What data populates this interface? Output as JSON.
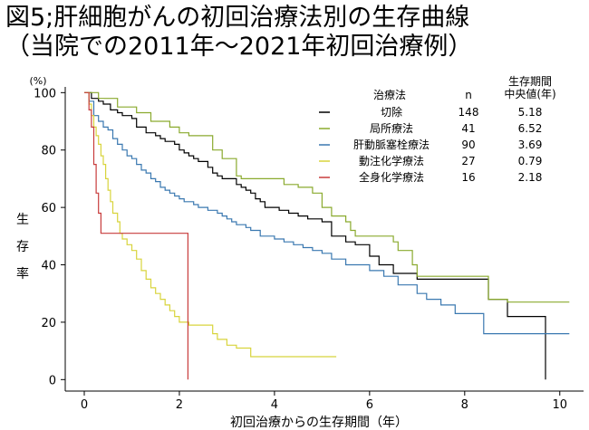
{
  "title_line1": "図5;肝細胞がんの初回治療法別の生存曲線",
  "title_line2": "（当院での2011年～2021年初回治療例）",
  "chart_data": {
    "type": "line",
    "subtype": "kaplan-meier step",
    "xlabel": "初回治療からの生存期間（年）",
    "ylabel": "生存率",
    "y_unit": "(%)",
    "xlim": [
      -0.4,
      10.5
    ],
    "ylim": [
      -4,
      102
    ],
    "xticks": [
      0,
      2,
      4,
      6,
      8,
      10
    ],
    "yticks": [
      0,
      20,
      40,
      60,
      80,
      100
    ],
    "grid": false,
    "legend": {
      "placement": "top-right",
      "header_method": "治療法",
      "header_n": "n",
      "header_median": "生存期間\n中央値(年)"
    },
    "series": [
      {
        "name": "切除",
        "n": "148",
        "median": "5.18",
        "color": "#000000",
        "points": [
          [
            0,
            100
          ],
          [
            0.1,
            100
          ],
          [
            0.15,
            98
          ],
          [
            0.3,
            97
          ],
          [
            0.4,
            96
          ],
          [
            0.55,
            94
          ],
          [
            0.7,
            93
          ],
          [
            0.8,
            92
          ],
          [
            1.0,
            91
          ],
          [
            1.1,
            88
          ],
          [
            1.2,
            88
          ],
          [
            1.3,
            86
          ],
          [
            1.5,
            85
          ],
          [
            1.6,
            84
          ],
          [
            1.7,
            83
          ],
          [
            1.9,
            82
          ],
          [
            2.0,
            80
          ],
          [
            2.1,
            79
          ],
          [
            2.2,
            78
          ],
          [
            2.3,
            77
          ],
          [
            2.4,
            76
          ],
          [
            2.5,
            76
          ],
          [
            2.6,
            74
          ],
          [
            2.7,
            72
          ],
          [
            2.8,
            71
          ],
          [
            2.9,
            70
          ],
          [
            3.0,
            70
          ],
          [
            3.1,
            70
          ],
          [
            3.2,
            68
          ],
          [
            3.3,
            67
          ],
          [
            3.4,
            66
          ],
          [
            3.5,
            65
          ],
          [
            3.6,
            63
          ],
          [
            3.7,
            62
          ],
          [
            3.8,
            60
          ],
          [
            4.0,
            60
          ],
          [
            4.1,
            59
          ],
          [
            4.3,
            58
          ],
          [
            4.5,
            57
          ],
          [
            4.7,
            56
          ],
          [
            5.0,
            55
          ],
          [
            5.2,
            50
          ],
          [
            5.5,
            48
          ],
          [
            5.7,
            47
          ],
          [
            5.9,
            47
          ],
          [
            6.0,
            43
          ],
          [
            6.2,
            40
          ],
          [
            6.5,
            37
          ],
          [
            7.0,
            35
          ],
          [
            8.5,
            28
          ],
          [
            8.9,
            22
          ],
          [
            9.7,
            22
          ],
          [
            9.7,
            0
          ]
        ]
      },
      {
        "name": "局所療法",
        "n": "41",
        "median": "6.52",
        "color": "#8aaa2e",
        "points": [
          [
            0,
            100
          ],
          [
            0.3,
            98
          ],
          [
            0.7,
            95
          ],
          [
            1.1,
            93
          ],
          [
            1.4,
            90
          ],
          [
            1.8,
            88
          ],
          [
            2.0,
            86
          ],
          [
            2.2,
            85
          ],
          [
            2.7,
            80
          ],
          [
            2.9,
            77
          ],
          [
            3.2,
            71
          ],
          [
            3.3,
            70
          ],
          [
            4.0,
            70
          ],
          [
            4.2,
            68
          ],
          [
            4.4,
            68
          ],
          [
            4.5,
            67
          ],
          [
            4.8,
            65
          ],
          [
            5.0,
            63
          ],
          [
            5.0,
            60
          ],
          [
            5.2,
            57
          ],
          [
            5.5,
            55
          ],
          [
            5.6,
            52
          ],
          [
            5.7,
            50
          ],
          [
            6.5,
            48
          ],
          [
            6.6,
            45
          ],
          [
            6.9,
            40
          ],
          [
            7.0,
            36
          ],
          [
            8.5,
            36
          ],
          [
            8.5,
            28
          ],
          [
            8.9,
            28
          ],
          [
            8.9,
            27
          ],
          [
            10.2,
            27
          ]
        ]
      },
      {
        "name": "肝動脈塞栓療法",
        "n": "90",
        "median": "3.69",
        "color": "#3a78b0",
        "points": [
          [
            0,
            100
          ],
          [
            0.1,
            97
          ],
          [
            0.2,
            92
          ],
          [
            0.3,
            90
          ],
          [
            0.4,
            88
          ],
          [
            0.5,
            87
          ],
          [
            0.6,
            84
          ],
          [
            0.7,
            82
          ],
          [
            0.8,
            80
          ],
          [
            0.9,
            78
          ],
          [
            1.0,
            77
          ],
          [
            1.1,
            75
          ],
          [
            1.2,
            73
          ],
          [
            1.3,
            72
          ],
          [
            1.4,
            70
          ],
          [
            1.5,
            69
          ],
          [
            1.6,
            67
          ],
          [
            1.7,
            66
          ],
          [
            1.8,
            65
          ],
          [
            1.9,
            64
          ],
          [
            2.0,
            63
          ],
          [
            2.1,
            62
          ],
          [
            2.3,
            61
          ],
          [
            2.4,
            60
          ],
          [
            2.6,
            59
          ],
          [
            2.8,
            58
          ],
          [
            2.9,
            57
          ],
          [
            3.0,
            56
          ],
          [
            3.1,
            55
          ],
          [
            3.2,
            54
          ],
          [
            3.4,
            53
          ],
          [
            3.5,
            52
          ],
          [
            3.7,
            50
          ],
          [
            3.9,
            50
          ],
          [
            4.0,
            49
          ],
          [
            4.2,
            48
          ],
          [
            4.4,
            47
          ],
          [
            4.6,
            46
          ],
          [
            4.8,
            45
          ],
          [
            5.0,
            44
          ],
          [
            5.2,
            42
          ],
          [
            5.5,
            40
          ],
          [
            5.8,
            40
          ],
          [
            6.0,
            38
          ],
          [
            6.3,
            36
          ],
          [
            6.6,
            33
          ],
          [
            7.0,
            30
          ],
          [
            7.2,
            28
          ],
          [
            7.5,
            26
          ],
          [
            7.8,
            23
          ],
          [
            8.4,
            23
          ],
          [
            8.4,
            16
          ],
          [
            10.2,
            16
          ]
        ]
      },
      {
        "name": "動注化学療法",
        "n": "27",
        "median": "0.79",
        "color": "#d8d43c",
        "points": [
          [
            0,
            100
          ],
          [
            0.1,
            96
          ],
          [
            0.15,
            92
          ],
          [
            0.2,
            88
          ],
          [
            0.25,
            85
          ],
          [
            0.3,
            82
          ],
          [
            0.35,
            78
          ],
          [
            0.4,
            75
          ],
          [
            0.45,
            70
          ],
          [
            0.5,
            66
          ],
          [
            0.55,
            62
          ],
          [
            0.6,
            58
          ],
          [
            0.7,
            55
          ],
          [
            0.75,
            51
          ],
          [
            0.8,
            49
          ],
          [
            0.9,
            47
          ],
          [
            1.0,
            45
          ],
          [
            1.1,
            42
          ],
          [
            1.2,
            38
          ],
          [
            1.3,
            35
          ],
          [
            1.4,
            32
          ],
          [
            1.5,
            30
          ],
          [
            1.6,
            28
          ],
          [
            1.7,
            26
          ],
          [
            1.8,
            24
          ],
          [
            1.9,
            22
          ],
          [
            2.0,
            20
          ],
          [
            2.2,
            19
          ],
          [
            2.7,
            16
          ],
          [
            2.8,
            14
          ],
          [
            3.0,
            12
          ],
          [
            3.2,
            11
          ],
          [
            3.5,
            8
          ],
          [
            4.0,
            8
          ],
          [
            5.3,
            8
          ]
        ]
      },
      {
        "name": "全身化学療法",
        "n": "16",
        "median": "2.18",
        "color": "#c83c3c",
        "points": [
          [
            0,
            100
          ],
          [
            0.1,
            94
          ],
          [
            0.15,
            88
          ],
          [
            0.2,
            75
          ],
          [
            0.25,
            65
          ],
          [
            0.3,
            58
          ],
          [
            0.35,
            51
          ],
          [
            2.18,
            51
          ],
          [
            2.18,
            0
          ]
        ]
      }
    ]
  }
}
